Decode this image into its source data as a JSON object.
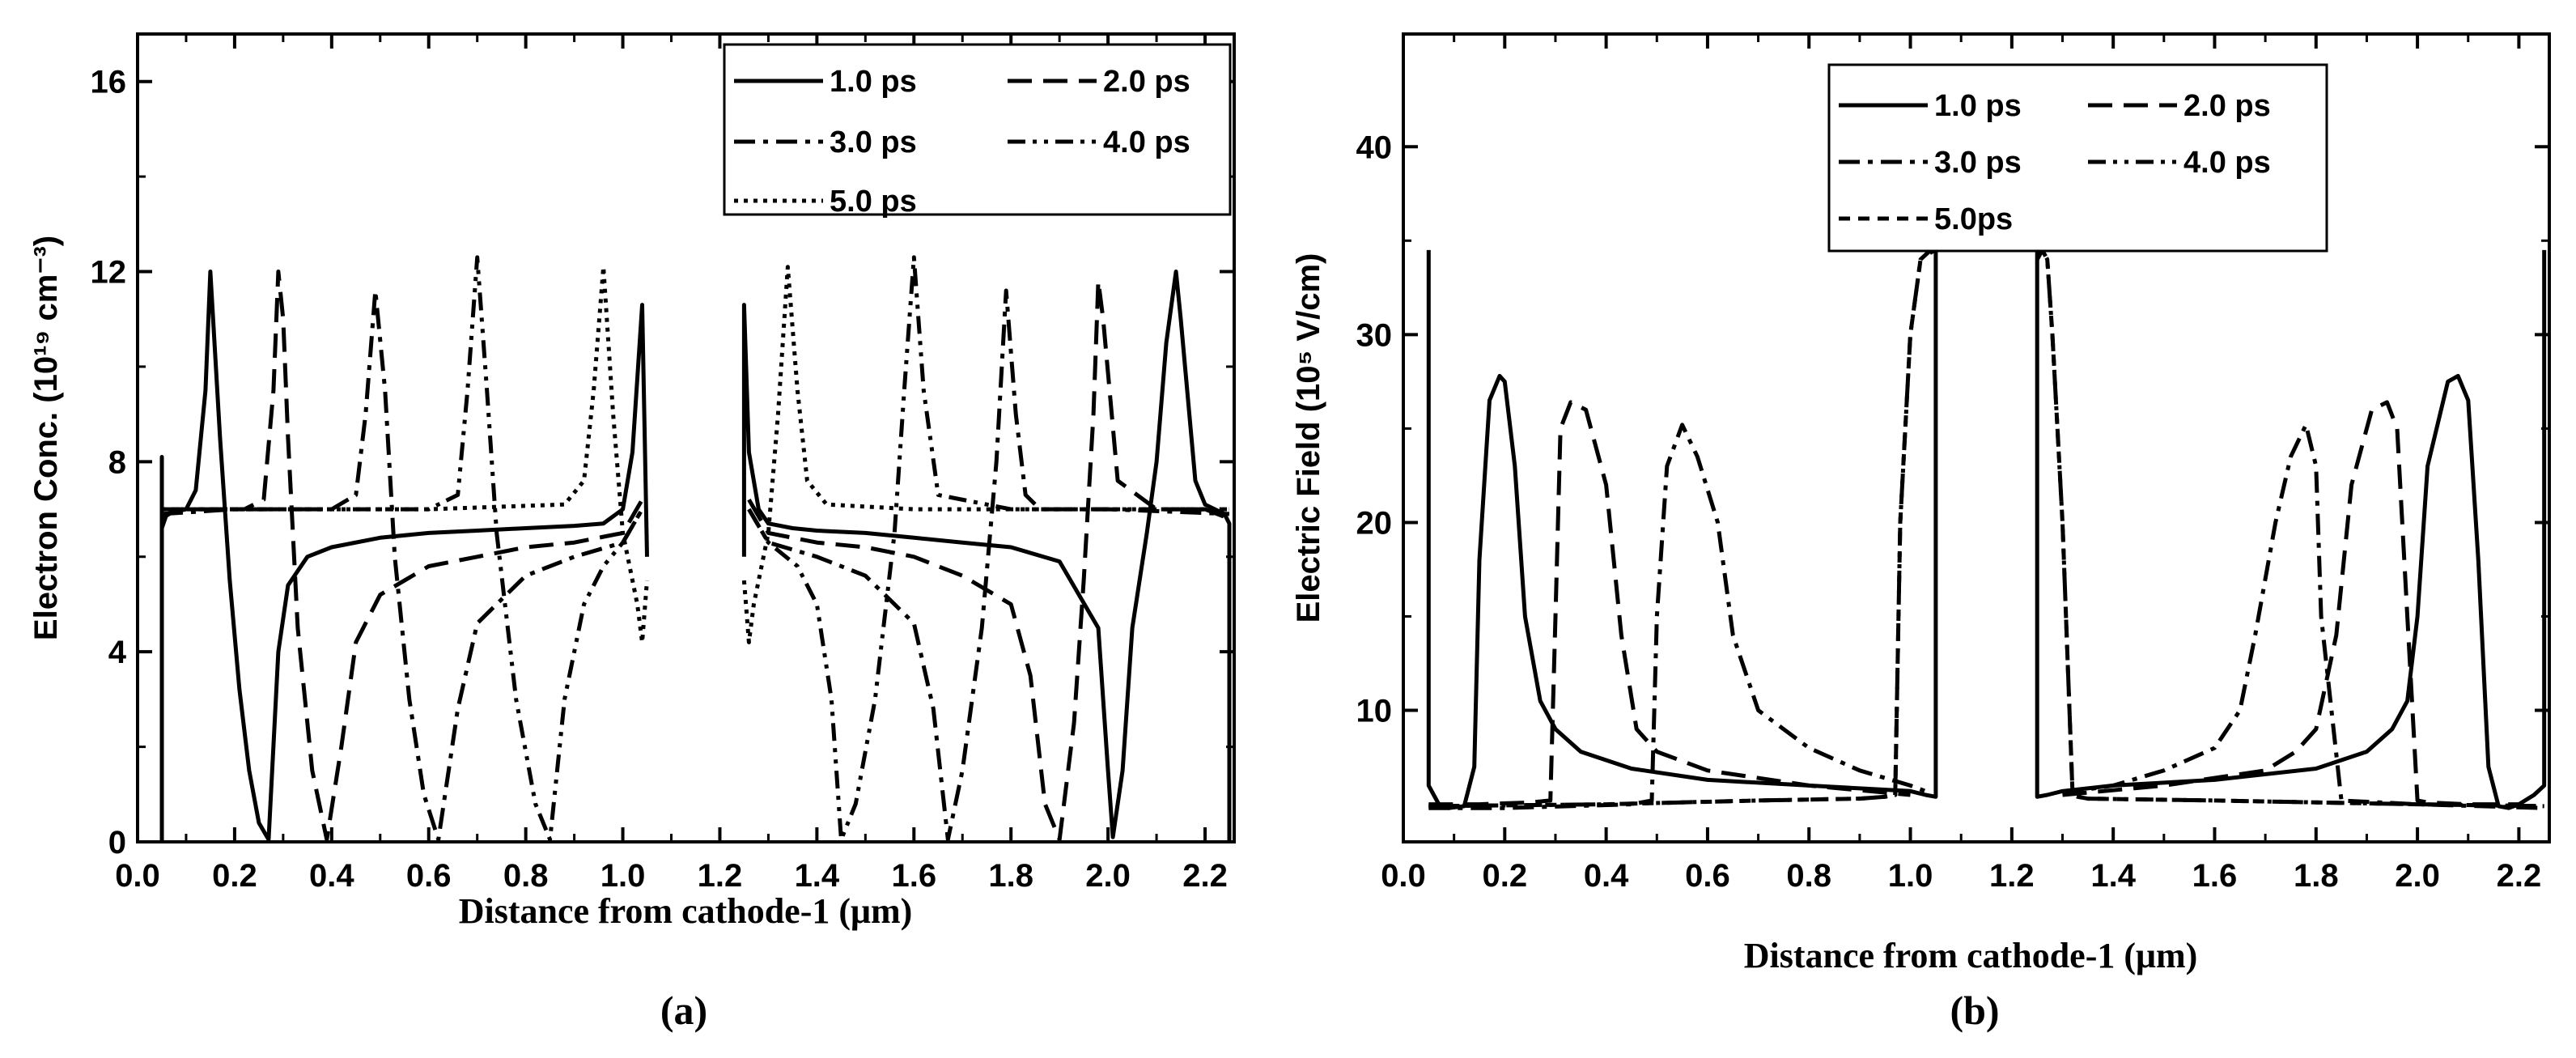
{
  "chart_data": [
    {
      "type": "line",
      "panel_label": "(a)",
      "xlabel": "Distance from cathode-1 (μm)",
      "ylabel": "Electron Conc. (10¹⁹ cm⁻³)",
      "xlim": [
        0,
        2.26
      ],
      "ylim": [
        0,
        17
      ],
      "xticks": [
        0.0,
        0.2,
        0.4,
        0.6,
        0.8,
        1.0,
        1.2,
        1.4,
        1.6,
        1.8,
        2.0,
        2.2
      ],
      "xtick_labels": [
        "0.0",
        "0.2",
        "0.4",
        "0.6",
        "0.8",
        "1.0",
        "1.2",
        "1.4",
        "1.6",
        "1.8",
        "2.0",
        "2.2"
      ],
      "yticks": [
        0,
        4,
        8,
        12,
        16
      ],
      "ytick_labels": [
        "0",
        "4",
        "8",
        "12",
        "16"
      ],
      "legend": [
        "1.0 ps",
        "2.0 ps",
        "3.0 ps",
        "4.0 ps",
        "5.0 ps"
      ],
      "legend_position": "top-right",
      "series": [
        {
          "name": "1.0 ps",
          "dash": "solid",
          "x": [
            0.05,
            0.05,
            0.05,
            0.06,
            0.08,
            0.1,
            0.12,
            0.14,
            0.15,
            0.17,
            0.19,
            0.21,
            0.23,
            0.25,
            0.27,
            0.29,
            0.31,
            0.35,
            0.4,
            0.5,
            0.6,
            0.7,
            0.8,
            0.9,
            0.96,
            1.0,
            1.02,
            1.04,
            1.05
          ],
          "y": [
            0,
            8.1,
            6.6,
            6.9,
            6.95,
            7.0,
            7.4,
            9.5,
            12.0,
            8.5,
            5.5,
            3.2,
            1.5,
            0.4,
            0.05,
            4.0,
            5.4,
            6.0,
            6.2,
            6.4,
            6.5,
            6.55,
            6.6,
            6.65,
            6.7,
            7.0,
            8.2,
            11.3,
            6.0
          ],
          "x2": [
            1.25,
            1.25,
            1.26,
            1.28,
            1.3,
            1.35,
            1.4,
            1.5,
            1.6,
            1.7,
            1.8,
            1.9,
            1.98,
            2.0,
            2.01,
            2.03,
            2.05,
            2.08,
            2.1,
            2.12,
            2.14,
            2.15,
            2.18,
            2.2,
            2.22,
            2.24,
            2.25,
            2.25
          ],
          "y2": [
            6.0,
            11.3,
            8.2,
            7.0,
            6.7,
            6.6,
            6.55,
            6.5,
            6.4,
            6.3,
            6.2,
            5.9,
            4.5,
            1.5,
            0.1,
            1.5,
            4.5,
            6.5,
            8.0,
            10.5,
            12.0,
            11.0,
            7.6,
            7.1,
            7.0,
            6.9,
            6.7,
            0
          ]
        },
        {
          "name": "2.0 ps",
          "dash": "long-dash",
          "x": [
            0.05,
            0.08,
            0.15,
            0.22,
            0.26,
            0.28,
            0.29,
            0.3,
            0.31,
            0.33,
            0.36,
            0.39,
            0.42,
            0.45,
            0.5,
            0.6,
            0.7,
            0.8,
            0.9,
            1.0,
            1.04
          ],
          "y": [
            6.8,
            7.0,
            7.0,
            7.0,
            7.2,
            9.5,
            12.0,
            11.0,
            8.5,
            4.5,
            1.5,
            0.05,
            2.0,
            4.2,
            5.2,
            5.8,
            6.0,
            6.2,
            6.3,
            6.5,
            7.2
          ],
          "x2": [
            1.26,
            1.3,
            1.4,
            1.5,
            1.6,
            1.7,
            1.8,
            1.84,
            1.87,
            1.9,
            1.93,
            1.95,
            1.97,
            1.98,
            1.99,
            2.02,
            2.1,
            2.2,
            2.25
          ],
          "y2": [
            7.2,
            6.5,
            6.3,
            6.2,
            6.0,
            5.6,
            5.0,
            3.5,
            0.8,
            0.05,
            2.5,
            5.5,
            9.0,
            11.8,
            11.0,
            7.6,
            7.0,
            7.0,
            6.8
          ]
        },
        {
          "name": "3.0 ps",
          "dash": "dash-dot",
          "x": [
            0.05,
            0.2,
            0.4,
            0.45,
            0.47,
            0.49,
            0.51,
            0.53,
            0.56,
            0.59,
            0.62,
            0.66,
            0.7,
            0.8,
            0.9,
            1.0,
            1.04
          ],
          "y": [
            6.9,
            7.0,
            7.0,
            7.3,
            9.0,
            11.6,
            9.5,
            6.0,
            3.0,
            1.0,
            0.05,
            2.8,
            4.6,
            5.6,
            6.0,
            6.3,
            7.0
          ],
          "x2": [
            1.26,
            1.3,
            1.4,
            1.5,
            1.6,
            1.64,
            1.67,
            1.7,
            1.74,
            1.77,
            1.79,
            1.81,
            1.83,
            1.86,
            2.0,
            2.25
          ],
          "y2": [
            7.0,
            6.3,
            6.0,
            5.6,
            4.6,
            2.8,
            0.05,
            1.5,
            4.5,
            8.0,
            11.6,
            9.0,
            7.3,
            7.0,
            7.0,
            6.9
          ]
        },
        {
          "name": "4.0 ps",
          "dash": "dash-dot-dot",
          "x": [
            0.05,
            0.3,
            0.6,
            0.66,
            0.68,
            0.7,
            0.72,
            0.74,
            0.78,
            0.82,
            0.85,
            0.88,
            0.92,
            0.96,
            1.0,
            1.04
          ],
          "y": [
            7.0,
            7.0,
            7.0,
            7.3,
            9.5,
            12.3,
            9.5,
            6.5,
            3.0,
            0.8,
            0.05,
            3.0,
            5.0,
            5.8,
            6.3,
            7.0
          ],
          "x2": [
            1.26,
            1.3,
            1.36,
            1.4,
            1.43,
            1.45,
            1.48,
            1.52,
            1.56,
            1.58,
            1.6,
            1.62,
            1.65,
            1.8,
            2.0,
            2.25
          ],
          "y2": [
            7.0,
            6.3,
            5.8,
            5.0,
            3.0,
            0.05,
            0.8,
            3.0,
            6.5,
            9.5,
            12.3,
            9.5,
            7.3,
            7.0,
            7.0,
            7.0
          ]
        },
        {
          "name": "5.0 ps",
          "dash": "dot",
          "x": [
            0.05,
            0.3,
            0.6,
            0.88,
            0.92,
            0.94,
            0.96,
            0.98,
            1.0,
            1.03,
            1.04,
            1.05
          ],
          "y": [
            7.0,
            7.0,
            7.0,
            7.1,
            7.6,
            9.5,
            12.1,
            9.0,
            6.5,
            5.0,
            4.2,
            5.5
          ],
          "x2": [
            1.25,
            1.26,
            1.27,
            1.3,
            1.32,
            1.34,
            1.36,
            1.38,
            1.42,
            1.6,
            2.0,
            2.25
          ],
          "y2": [
            5.5,
            4.2,
            5.0,
            6.5,
            9.0,
            12.1,
            9.5,
            7.6,
            7.1,
            7.0,
            7.0,
            7.0
          ]
        }
      ]
    },
    {
      "type": "line",
      "panel_label": "(b)",
      "xlabel": "Distance from cathode-1 (μm)",
      "ylabel": "Electric Field (10⁵ V/cm)",
      "xlim": [
        0,
        2.26
      ],
      "ylim": [
        3,
        46
      ],
      "xticks": [
        0.0,
        0.2,
        0.4,
        0.6,
        0.8,
        1.0,
        1.2,
        1.4,
        1.6,
        1.8,
        2.0,
        2.2
      ],
      "xtick_labels": [
        "0.0",
        "0.2",
        "0.4",
        "0.6",
        "0.8",
        "1.0",
        "1.2",
        "1.4",
        "1.6",
        "1.8",
        "2.0",
        "2.2"
      ],
      "yticks": [
        10,
        20,
        30,
        40
      ],
      "ytick_labels": [
        "10",
        "20",
        "30",
        "40"
      ],
      "legend": [
        "1.0 ps",
        "2.0 ps",
        "3.0 ps",
        "4.0 ps",
        "5.0ps"
      ],
      "legend_position": "top-center",
      "series": [
        {
          "name": "1.0 ps",
          "dash": "solid",
          "x": [
            0.05,
            0.05,
            0.06,
            0.07,
            0.09,
            0.12,
            0.14,
            0.15,
            0.17,
            0.19,
            0.2,
            0.22,
            0.24,
            0.27,
            0.3,
            0.35,
            0.45,
            0.6,
            0.8,
            1.0,
            1.03,
            1.05,
            1.05
          ],
          "y": [
            34.5,
            6.0,
            5.5,
            5.0,
            4.8,
            4.9,
            7.0,
            18.0,
            26.5,
            27.8,
            27.5,
            23.0,
            15.0,
            10.5,
            9.0,
            7.8,
            6.9,
            6.3,
            6.0,
            5.7,
            5.5,
            5.4,
            35.0
          ],
          "x2": [
            1.25,
            1.25,
            1.27,
            1.3,
            1.4,
            1.6,
            1.8,
            1.9,
            1.95,
            1.98,
            2.0,
            2.02,
            2.06,
            2.08,
            2.1,
            2.12,
            2.14,
            2.16,
            2.18,
            2.2,
            2.23,
            2.25,
            2.25
          ],
          "y2": [
            35.0,
            5.4,
            5.5,
            5.7,
            6.0,
            6.3,
            6.9,
            7.8,
            9.0,
            10.5,
            15.0,
            23.0,
            27.5,
            27.8,
            26.5,
            18.0,
            7.0,
            4.9,
            4.8,
            5.0,
            5.5,
            6.0,
            34.5
          ]
        },
        {
          "name": "2.0 ps",
          "dash": "long-dash",
          "x": [
            0.05,
            0.15,
            0.25,
            0.29,
            0.3,
            0.31,
            0.33,
            0.36,
            0.4,
            0.43,
            0.46,
            0.5,
            0.6,
            0.8,
            1.0
          ],
          "y": [
            5.0,
            5.0,
            5.1,
            5.2,
            15.0,
            25.0,
            26.4,
            26.0,
            22.0,
            14.0,
            9.0,
            7.8,
            6.8,
            6.0,
            5.5
          ],
          "x2": [
            1.3,
            1.5,
            1.7,
            1.76,
            1.8,
            1.84,
            1.87,
            1.91,
            1.94,
            1.96,
            1.98,
            2.0,
            2.02,
            2.1,
            2.2
          ],
          "y2": [
            5.5,
            6.0,
            6.8,
            7.8,
            9.0,
            14.0,
            22.0,
            26.0,
            26.4,
            25.0,
            15.0,
            5.2,
            5.1,
            5.0,
            5.0
          ]
        },
        {
          "name": "3.0 ps",
          "dash": "dash-dot",
          "x": [
            0.05,
            0.2,
            0.45,
            0.49,
            0.5,
            0.52,
            0.55,
            0.58,
            0.62,
            0.65,
            0.7,
            0.8,
            0.9,
            1.0,
            1.04
          ],
          "y": [
            4.8,
            4.8,
            5.0,
            5.2,
            15.0,
            23.0,
            25.2,
            23.5,
            20.0,
            14.0,
            10.0,
            8.0,
            6.8,
            6.0,
            5.6
          ],
          "x2": [
            1.3,
            1.4,
            1.5,
            1.6,
            1.65,
            1.68,
            1.72,
            1.75,
            1.78,
            1.8,
            1.81,
            1.85,
            2.0,
            2.25
          ],
          "y2": [
            5.6,
            6.0,
            6.8,
            8.0,
            10.0,
            14.0,
            20.0,
            23.5,
            25.2,
            23.0,
            15.0,
            5.2,
            5.0,
            4.8
          ]
        },
        {
          "name": "4.0 ps",
          "dash": "dash-dot-dot",
          "x": [
            0.05,
            0.4,
            0.7,
            0.9,
            0.95,
            0.97,
            0.98,
            1.0,
            1.02,
            1.04,
            1.05
          ],
          "y": [
            4.9,
            5.0,
            5.2,
            5.3,
            5.4,
            5.5,
            20.0,
            30.0,
            34.0,
            34.5,
            34.0
          ],
          "x2": [
            1.25,
            1.26,
            1.27,
            1.28,
            1.3,
            1.32,
            1.33,
            1.35,
            1.6,
            2.0,
            2.25
          ],
          "y2": [
            34.0,
            34.5,
            34.0,
            30.0,
            20.0,
            5.5,
            5.4,
            5.3,
            5.2,
            5.0,
            4.9
          ]
        },
        {
          "name": "5.0ps",
          "dash": "short-dash",
          "x": [
            0.05,
            0.4,
            0.7,
            0.9,
            0.95,
            0.97,
            0.98,
            1.0,
            1.02,
            1.04,
            1.05
          ],
          "y": [
            4.9,
            5.0,
            5.2,
            5.3,
            5.4,
            5.5,
            20.0,
            30.0,
            34.0,
            34.5,
            34.0
          ],
          "x2": [
            1.25,
            1.26,
            1.27,
            1.28,
            1.3,
            1.32,
            1.33,
            1.35,
            1.6,
            2.0,
            2.25
          ],
          "y2": [
            34.0,
            34.5,
            34.0,
            30.0,
            20.0,
            5.5,
            5.4,
            5.3,
            5.2,
            5.0,
            4.9
          ]
        }
      ]
    }
  ]
}
